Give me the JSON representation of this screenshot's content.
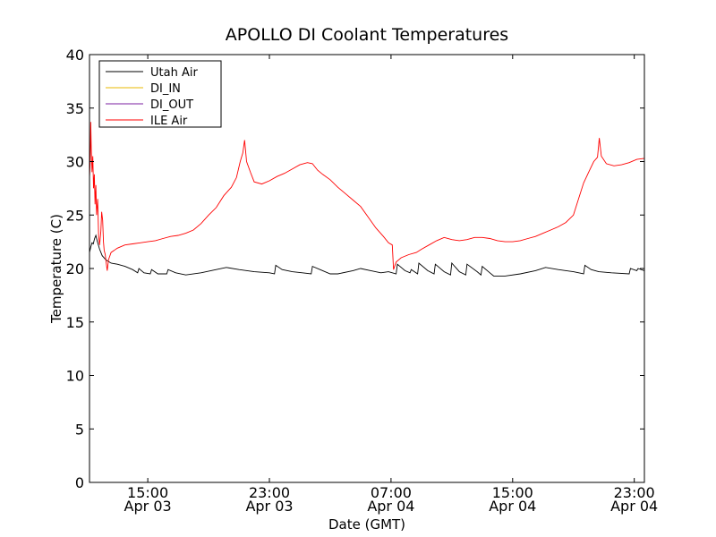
{
  "chart_data": {
    "type": "line",
    "title": "APOLLO DI Coolant Temperatures",
    "xlabel": "Date (GMT)",
    "ylabel": "Temperature (C)",
    "ylim": [
      0,
      40
    ],
    "yticks": [
      0,
      5,
      10,
      15,
      20,
      25,
      30,
      35,
      40
    ],
    "xlim": [
      "2010-04-03 11:10",
      "2010-04-04 23:40"
    ],
    "xticks": [
      {
        "value": "2010-04-03 15:00",
        "line1": "15:00",
        "line2": "Apr 03"
      },
      {
        "value": "2010-04-03 23:00",
        "line1": "23:00",
        "line2": "Apr 03"
      },
      {
        "value": "2010-04-04 07:00",
        "line1": "07:00",
        "line2": "Apr 04"
      },
      {
        "value": "2010-04-04 15:00",
        "line1": "15:00",
        "line2": "Apr 04"
      },
      {
        "value": "2010-04-04 23:00",
        "line1": "23:00",
        "line2": "Apr 04"
      }
    ],
    "grid": false,
    "legend_position": "top-left",
    "series": [
      {
        "name": "Utah Air",
        "color": "#000000",
        "points": [
          [
            "2010-04-03 11:10",
            21.5
          ],
          [
            "2010-04-03 11:15",
            22.0
          ],
          [
            "2010-04-03 11:20",
            22.4
          ],
          [
            "2010-04-03 11:25",
            22.3
          ],
          [
            "2010-04-03 11:30",
            22.8
          ],
          [
            "2010-04-03 11:35",
            23.1
          ],
          [
            "2010-04-03 11:40",
            22.6
          ],
          [
            "2010-04-03 11:50",
            21.8
          ],
          [
            "2010-04-03 12:00",
            21.2
          ],
          [
            "2010-04-03 12:15",
            20.8
          ],
          [
            "2010-04-03 12:35",
            20.5
          ],
          [
            "2010-04-03 13:00",
            20.4
          ],
          [
            "2010-04-03 13:30",
            20.2
          ],
          [
            "2010-04-03 14:00",
            19.9
          ],
          [
            "2010-04-03 14:20",
            19.6
          ],
          [
            "2010-04-03 14:25",
            20.0
          ],
          [
            "2010-04-03 14:45",
            19.6
          ],
          [
            "2010-04-03 15:10",
            19.5
          ],
          [
            "2010-04-03 15:15",
            19.9
          ],
          [
            "2010-04-03 15:40",
            19.5
          ],
          [
            "2010-04-03 16:15",
            19.5
          ],
          [
            "2010-04-03 16:20",
            19.9
          ],
          [
            "2010-04-03 16:50",
            19.6
          ],
          [
            "2010-04-03 17:30",
            19.4
          ],
          [
            "2010-04-03 18:30",
            19.6
          ],
          [
            "2010-04-03 19:30",
            19.9
          ],
          [
            "2010-04-03 20:10",
            20.1
          ],
          [
            "2010-04-03 21:00",
            19.9
          ],
          [
            "2010-04-03 22:00",
            19.7
          ],
          [
            "2010-04-03 23:00",
            19.6
          ],
          [
            "2010-04-03 23:20",
            19.5
          ],
          [
            "2010-04-03 23:25",
            20.3
          ],
          [
            "2010-04-03 23:50",
            19.9
          ],
          [
            "2010-04-04 00:30",
            19.7
          ],
          [
            "2010-04-04 01:10",
            19.6
          ],
          [
            "2010-04-04 01:45",
            19.5
          ],
          [
            "2010-04-04 01:50",
            20.2
          ],
          [
            "2010-04-04 02:30",
            19.8
          ],
          [
            "2010-04-04 03:00",
            19.5
          ],
          [
            "2010-04-04 03:30",
            19.5
          ],
          [
            "2010-04-04 04:30",
            19.8
          ],
          [
            "2010-04-04 05:00",
            20.0
          ],
          [
            "2010-04-04 05:40",
            19.8
          ],
          [
            "2010-04-04 06:20",
            19.6
          ],
          [
            "2010-04-04 06:50",
            19.7
          ],
          [
            "2010-04-04 07:20",
            19.5
          ],
          [
            "2010-04-04 07:25",
            20.4
          ],
          [
            "2010-04-04 07:55",
            19.8
          ],
          [
            "2010-04-04 08:15",
            19.6
          ],
          [
            "2010-04-04 08:20",
            19.9
          ],
          [
            "2010-04-04 08:45",
            19.5
          ],
          [
            "2010-04-04 08:50",
            20.5
          ],
          [
            "2010-04-04 09:25",
            19.8
          ],
          [
            "2010-04-04 09:50",
            19.5
          ],
          [
            "2010-04-04 09:55",
            20.4
          ],
          [
            "2010-04-04 10:30",
            19.7
          ],
          [
            "2010-04-04 10:55",
            19.4
          ],
          [
            "2010-04-04 11:00",
            20.5
          ],
          [
            "2010-04-04 11:30",
            19.7
          ],
          [
            "2010-04-04 11:55",
            19.4
          ],
          [
            "2010-04-04 12:00",
            20.4
          ],
          [
            "2010-04-04 12:40",
            19.7
          ],
          [
            "2010-04-04 12:55",
            19.4
          ],
          [
            "2010-04-04 13:00",
            20.2
          ],
          [
            "2010-04-04 13:30",
            19.6
          ],
          [
            "2010-04-04 13:45",
            19.3
          ],
          [
            "2010-04-04 14:30",
            19.3
          ],
          [
            "2010-04-04 15:30",
            19.5
          ],
          [
            "2010-04-04 16:30",
            19.8
          ],
          [
            "2010-04-04 17:10",
            20.1
          ],
          [
            "2010-04-04 18:00",
            19.9
          ],
          [
            "2010-04-04 19:00",
            19.7
          ],
          [
            "2010-04-04 19:40",
            19.5
          ],
          [
            "2010-04-04 19:45",
            20.3
          ],
          [
            "2010-04-04 20:10",
            19.9
          ],
          [
            "2010-04-04 20:40",
            19.7
          ],
          [
            "2010-04-04 21:30",
            19.6
          ],
          [
            "2010-04-04 22:40",
            19.5
          ],
          [
            "2010-04-04 22:45",
            20.0
          ],
          [
            "2010-04-04 23:10",
            19.8
          ],
          [
            "2010-04-04 23:15",
            20.0
          ],
          [
            "2010-04-04 23:40",
            19.8
          ]
        ]
      },
      {
        "name": "DI_IN",
        "color": "#e8b800",
        "points": []
      },
      {
        "name": "DI_OUT",
        "color": "#7b1fa2",
        "points": []
      },
      {
        "name": "ILE Air",
        "color": "#ff0000",
        "points": [
          [
            "2010-04-03 11:10",
            28.5
          ],
          [
            "2010-04-03 11:13",
            30.0
          ],
          [
            "2010-04-03 11:15",
            33.7
          ],
          [
            "2010-04-03 11:17",
            31.2
          ],
          [
            "2010-04-03 11:20",
            29.0
          ],
          [
            "2010-04-03 11:23",
            30.5
          ],
          [
            "2010-04-03 11:26",
            27.5
          ],
          [
            "2010-04-03 11:29",
            28.8
          ],
          [
            "2010-04-03 11:32",
            26.0
          ],
          [
            "2010-04-03 11:35",
            27.8
          ],
          [
            "2010-04-03 11:38",
            25.0
          ],
          [
            "2010-04-03 11:42",
            26.5
          ],
          [
            "2010-04-03 11:46",
            23.0
          ],
          [
            "2010-04-03 11:50",
            22.2
          ],
          [
            "2010-04-03 11:55",
            23.5
          ],
          [
            "2010-04-03 11:58",
            25.3
          ],
          [
            "2010-04-03 12:02",
            24.5
          ],
          [
            "2010-04-03 12:05",
            22.5
          ],
          [
            "2010-04-03 12:08",
            21.7
          ],
          [
            "2010-04-03 12:12",
            21.3
          ],
          [
            "2010-04-03 12:16",
            20.5
          ],
          [
            "2010-04-03 12:20",
            19.8
          ],
          [
            "2010-04-03 12:25",
            20.8
          ],
          [
            "2010-04-03 12:35",
            21.5
          ],
          [
            "2010-04-03 13:00",
            21.9
          ],
          [
            "2010-04-03 13:30",
            22.2
          ],
          [
            "2010-04-03 14:00",
            22.3
          ],
          [
            "2010-04-03 14:30",
            22.4
          ],
          [
            "2010-04-03 15:00",
            22.5
          ],
          [
            "2010-04-03 15:30",
            22.6
          ],
          [
            "2010-04-03 16:00",
            22.8
          ],
          [
            "2010-04-03 16:30",
            23.0
          ],
          [
            "2010-04-03 17:00",
            23.1
          ],
          [
            "2010-04-03 17:30",
            23.3
          ],
          [
            "2010-04-03 18:00",
            23.6
          ],
          [
            "2010-04-03 18:30",
            24.2
          ],
          [
            "2010-04-03 19:00",
            25.0
          ],
          [
            "2010-04-03 19:30",
            25.7
          ],
          [
            "2010-04-03 20:00",
            26.8
          ],
          [
            "2010-04-03 20:30",
            27.6
          ],
          [
            "2010-04-03 20:50",
            28.5
          ],
          [
            "2010-04-03 21:05",
            30.0
          ],
          [
            "2010-04-03 21:15",
            30.8
          ],
          [
            "2010-04-03 21:22",
            32.0
          ],
          [
            "2010-04-03 21:30",
            30.0
          ],
          [
            "2010-04-03 21:45",
            29.0
          ],
          [
            "2010-04-03 22:00",
            28.1
          ],
          [
            "2010-04-03 22:30",
            27.9
          ],
          [
            "2010-04-03 23:00",
            28.2
          ],
          [
            "2010-04-03 23:30",
            28.6
          ],
          [
            "2010-04-04 00:00",
            28.9
          ],
          [
            "2010-04-04 00:30",
            29.3
          ],
          [
            "2010-04-04 01:00",
            29.7
          ],
          [
            "2010-04-04 01:30",
            29.9
          ],
          [
            "2010-04-04 01:50",
            29.8
          ],
          [
            "2010-04-04 02:10",
            29.2
          ],
          [
            "2010-04-04 02:30",
            28.8
          ],
          [
            "2010-04-04 03:00",
            28.3
          ],
          [
            "2010-04-04 03:30",
            27.6
          ],
          [
            "2010-04-04 04:00",
            27.0
          ],
          [
            "2010-04-04 04:30",
            26.4
          ],
          [
            "2010-04-04 05:00",
            25.8
          ],
          [
            "2010-04-04 05:30",
            24.8
          ],
          [
            "2010-04-04 06:00",
            23.8
          ],
          [
            "2010-04-04 06:30",
            23.0
          ],
          [
            "2010-04-04 06:50",
            22.4
          ],
          [
            "2010-04-04 07:05",
            22.2
          ],
          [
            "2010-04-04 07:10",
            19.9
          ],
          [
            "2010-04-04 07:20",
            20.6
          ],
          [
            "2010-04-04 07:40",
            21.0
          ],
          [
            "2010-04-04 08:10",
            21.3
          ],
          [
            "2010-04-04 08:40",
            21.5
          ],
          [
            "2010-04-04 09:00",
            21.8
          ],
          [
            "2010-04-04 09:30",
            22.2
          ],
          [
            "2010-04-04 10:00",
            22.6
          ],
          [
            "2010-04-04 10:30",
            22.9
          ],
          [
            "2010-04-04 11:00",
            22.7
          ],
          [
            "2010-04-04 11:30",
            22.6
          ],
          [
            "2010-04-04 12:00",
            22.7
          ],
          [
            "2010-04-04 12:30",
            22.9
          ],
          [
            "2010-04-04 13:00",
            22.9
          ],
          [
            "2010-04-04 13:30",
            22.8
          ],
          [
            "2010-04-04 14:00",
            22.6
          ],
          [
            "2010-04-04 14:30",
            22.5
          ],
          [
            "2010-04-04 15:00",
            22.5
          ],
          [
            "2010-04-04 15:30",
            22.6
          ],
          [
            "2010-04-04 16:00",
            22.8
          ],
          [
            "2010-04-04 16:30",
            23.0
          ],
          [
            "2010-04-04 17:00",
            23.3
          ],
          [
            "2010-04-04 17:30",
            23.6
          ],
          [
            "2010-04-04 18:00",
            23.9
          ],
          [
            "2010-04-04 18:30",
            24.3
          ],
          [
            "2010-04-04 19:00",
            25.0
          ],
          [
            "2010-04-04 19:20",
            26.5
          ],
          [
            "2010-04-04 19:40",
            28.0
          ],
          [
            "2010-04-04 20:00",
            29.0
          ],
          [
            "2010-04-04 20:20",
            30.0
          ],
          [
            "2010-04-04 20:35",
            30.4
          ],
          [
            "2010-04-04 20:42",
            32.2
          ],
          [
            "2010-04-04 20:50",
            30.5
          ],
          [
            "2010-04-04 21:10",
            29.8
          ],
          [
            "2010-04-04 21:40",
            29.6
          ],
          [
            "2010-04-04 22:10",
            29.7
          ],
          [
            "2010-04-04 22:40",
            29.9
          ],
          [
            "2010-04-04 23:10",
            30.2
          ],
          [
            "2010-04-04 23:40",
            30.3
          ]
        ]
      }
    ]
  }
}
